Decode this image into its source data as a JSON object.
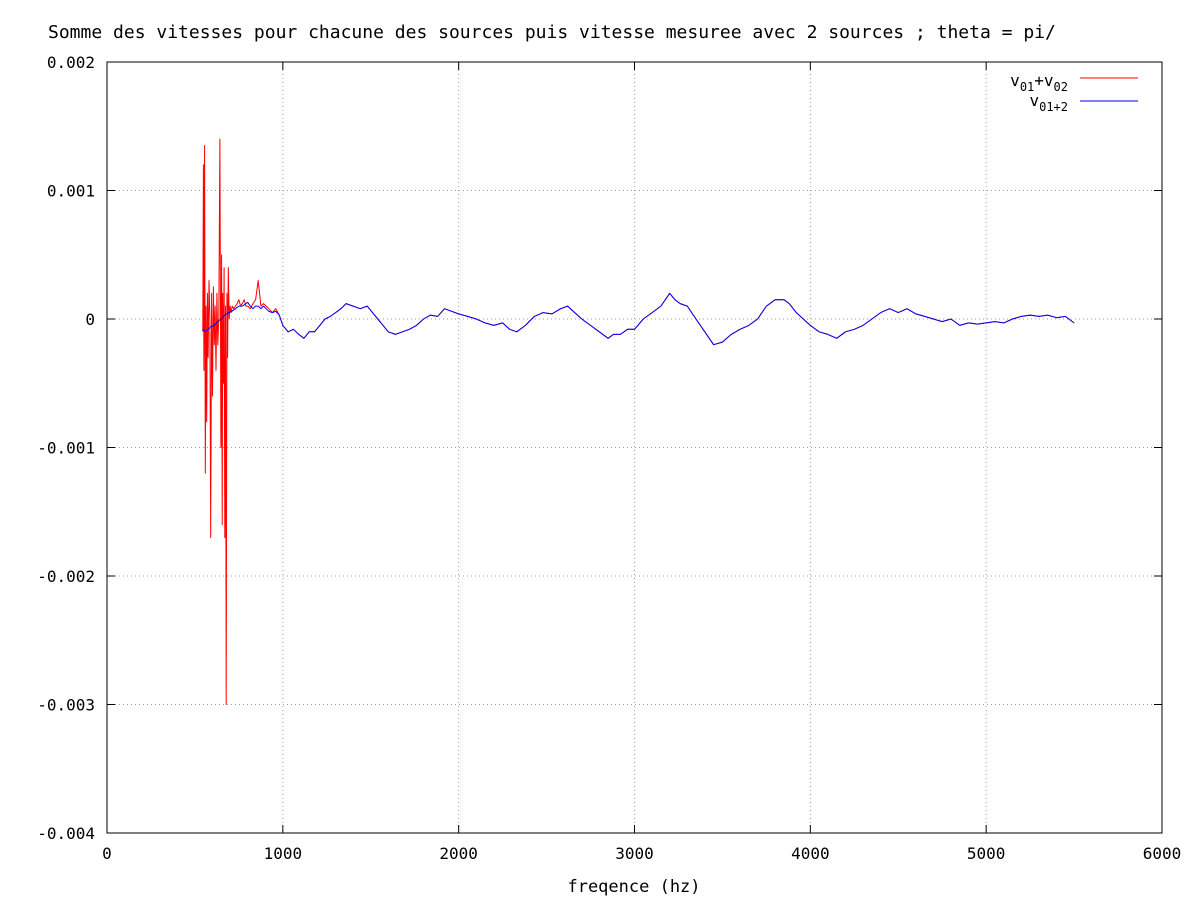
{
  "chart_data": {
    "type": "line",
    "title": "Somme des vitesses pour chacune des sources puis vitesse mesuree avec 2 sources ; theta = pi/",
    "xlabel": "freqence (hz)",
    "ylabel": "",
    "xlim": [
      0,
      6000
    ],
    "ylim": [
      -0.004,
      0.002
    ],
    "x_ticks": [
      0,
      1000,
      2000,
      3000,
      4000,
      5000,
      6000
    ],
    "x_tick_labels": [
      "0",
      "1000",
      "2000",
      "3000",
      "4000",
      "5000",
      "6000"
    ],
    "y_ticks": [
      -0.004,
      -0.003,
      -0.002,
      -0.001,
      0,
      0.001,
      0.002
    ],
    "y_tick_labels": [
      "-0.004",
      "-0.003",
      "-0.002",
      "-0.001",
      "0",
      "0.001",
      "0.002"
    ],
    "grid": true,
    "legend_position": "top-right",
    "legend": [
      {
        "base": "v",
        "sub": "01",
        "plus": "+",
        "base2": "v",
        "sub2": "02"
      },
      {
        "base": "v",
        "sub": "01+2"
      }
    ],
    "series": [
      {
        "color": "#ff0000",
        "x": [
          545,
          548,
          551,
          555,
          559,
          563,
          567,
          571,
          575,
          580,
          585,
          590,
          595,
          600,
          605,
          610,
          615,
          620,
          625,
          630,
          636,
          642,
          648,
          652,
          655,
          658,
          662,
          666,
          670,
          674,
          678,
          682,
          686,
          690,
          695,
          700,
          706,
          712,
          720,
          730,
          740,
          750,
          760,
          770,
          780,
          790,
          800,
          815,
          830,
          845,
          860,
          875,
          890,
          905,
          920,
          940,
          960,
          980,
          1000,
          1030,
          1060,
          1090,
          1120,
          1150,
          1180,
          1210,
          1240,
          1270,
          1300,
          1330,
          1360,
          1400,
          1440,
          1480,
          1510,
          1540,
          1570,
          1600,
          1640,
          1680,
          1720,
          1760,
          1800,
          1840,
          1880,
          1920,
          1960,
          2000,
          2050,
          2100,
          2150,
          2200,
          2250,
          2290,
          2330,
          2380,
          2430,
          2480,
          2530,
          2580,
          2620,
          2660,
          2700,
          2750,
          2800,
          2850,
          2880,
          2920,
          2960,
          3000,
          3050,
          3100,
          3150,
          3200,
          3230,
          3260,
          3300,
          3350,
          3400,
          3450,
          3500,
          3550,
          3600,
          3650,
          3700,
          3750,
          3800,
          3850,
          3880,
          3920,
          3960,
          4000,
          4050,
          4100,
          4150,
          4200,
          4250,
          4300,
          4350,
          4400,
          4450,
          4500,
          4550,
          4600,
          4650,
          4700,
          4750,
          4800,
          4850,
          4900,
          4950,
          5000,
          5050,
          5100,
          5150,
          5200,
          5250,
          5300,
          5350,
          5400,
          5450,
          5500
        ],
        "y": [
          -0.0001,
          0.0012,
          -0.0004,
          0.00135,
          -0.0012,
          0.0001,
          -0.0008,
          0.0002,
          -0.0003,
          0.0003,
          0.0,
          -0.0017,
          0.0002,
          -0.0006,
          0.00025,
          -0.0002,
          0.0001,
          -0.0004,
          0.0002,
          -0.0002,
          0.0,
          0.0014,
          -0.001,
          0.0005,
          -0.0016,
          0.0002,
          -0.0005,
          0.0004,
          -0.0017,
          0.0001,
          -0.003,
          0.0002,
          -0.0003,
          0.0004,
          0.0,
          0.0001,
          5e-05,
          0.0001,
          8e-05,
          0.0001,
          0.00012,
          0.00015,
          0.0001,
          0.00012,
          0.00015,
          0.0001,
          0.0001,
          8e-05,
          0.00012,
          0.00015,
          0.0003,
          0.0001,
          0.00012,
          0.0001,
          8e-05,
          5e-05,
          8e-05,
          3e-05,
          -5e-05,
          -0.0001,
          -8e-05,
          -0.00012,
          -0.00015,
          -0.0001,
          -0.0001,
          -5e-05,
          0.0,
          2e-05,
          5e-05,
          8e-05,
          0.00012,
          0.0001,
          8e-05,
          0.0001,
          5e-05,
          0.0,
          -5e-05,
          -0.0001,
          -0.00012,
          -0.0001,
          -8e-05,
          -5e-05,
          0.0,
          3e-05,
          2e-05,
          8e-05,
          6e-05,
          4e-05,
          2e-05,
          0.0,
          -3e-05,
          -5e-05,
          -3e-05,
          -8e-05,
          -0.0001,
          -5e-05,
          2e-05,
          5e-05,
          4e-05,
          8e-05,
          0.0001,
          5e-05,
          0.0,
          -5e-05,
          -0.0001,
          -0.00015,
          -0.00012,
          -0.00012,
          -8e-05,
          -8e-05,
          0.0,
          5e-05,
          0.0001,
          0.0002,
          0.00015,
          0.00012,
          0.0001,
          0.0,
          -0.0001,
          -0.0002,
          -0.00018,
          -0.00012,
          -8e-05,
          -5e-05,
          0.0,
          0.0001,
          0.00015,
          0.00015,
          0.00012,
          5e-05,
          0.0,
          -5e-05,
          -0.0001,
          -0.00012,
          -0.00015,
          -0.0001,
          -8e-05,
          -5e-05,
          0.0,
          5e-05,
          8e-05,
          5e-05,
          8e-05,
          4e-05,
          2e-05,
          0.0,
          -2e-05,
          0.0,
          -5e-05,
          -3e-05,
          -4e-05,
          -3e-05,
          -2e-05,
          -3e-05,
          0.0,
          2e-05,
          3e-05,
          2e-05,
          3e-05,
          1e-05,
          2e-05,
          -3e-05
        ]
      },
      {
        "color": "#0000ff",
        "x": [
          545,
          560,
          575,
          590,
          610,
          630,
          650,
          670,
          690,
          710,
          730,
          750,
          770,
          790,
          800,
          815,
          830,
          845,
          860,
          875,
          890,
          905,
          920,
          940,
          960,
          980,
          1000,
          1030,
          1060,
          1090,
          1120,
          1150,
          1180,
          1210,
          1240,
          1270,
          1300,
          1330,
          1360,
          1400,
          1440,
          1480,
          1510,
          1540,
          1570,
          1600,
          1640,
          1680,
          1720,
          1760,
          1800,
          1840,
          1880,
          1920,
          1960,
          2000,
          2050,
          2100,
          2150,
          2200,
          2250,
          2290,
          2330,
          2380,
          2430,
          2480,
          2530,
          2580,
          2620,
          2660,
          2700,
          2750,
          2800,
          2850,
          2880,
          2920,
          2960,
          3000,
          3050,
          3100,
          3150,
          3200,
          3230,
          3260,
          3300,
          3350,
          3400,
          3450,
          3500,
          3550,
          3600,
          3650,
          3700,
          3750,
          3800,
          3850,
          3880,
          3920,
          3960,
          4000,
          4050,
          4100,
          4150,
          4200,
          4250,
          4300,
          4350,
          4400,
          4450,
          4500,
          4550,
          4600,
          4650,
          4700,
          4750,
          4800,
          4850,
          4900,
          4950,
          5000,
          5050,
          5100,
          5150,
          5200,
          5250,
          5300,
          5350,
          5400,
          5450,
          5500
        ],
        "y": [
          -8e-05,
          -0.0001,
          -8e-05,
          -6e-05,
          -5e-05,
          -2e-05,
          0.0,
          3e-05,
          5e-05,
          6e-05,
          8e-05,
          0.0001,
          0.0001,
          0.00012,
          0.00013,
          0.0001,
          8e-05,
          0.0001,
          0.0001,
          8e-05,
          0.0001,
          8e-05,
          6e-05,
          5e-05,
          6e-05,
          3e-05,
          -5e-05,
          -0.0001,
          -8e-05,
          -0.00012,
          -0.00015,
          -0.0001,
          -0.0001,
          -5e-05,
          0.0,
          2e-05,
          5e-05,
          8e-05,
          0.00012,
          0.0001,
          8e-05,
          0.0001,
          5e-05,
          0.0,
          -5e-05,
          -0.0001,
          -0.00012,
          -0.0001,
          -8e-05,
          -5e-05,
          0.0,
          3e-05,
          2e-05,
          8e-05,
          6e-05,
          4e-05,
          2e-05,
          0.0,
          -3e-05,
          -5e-05,
          -3e-05,
          -8e-05,
          -0.0001,
          -5e-05,
          2e-05,
          5e-05,
          4e-05,
          8e-05,
          0.0001,
          5e-05,
          0.0,
          -5e-05,
          -0.0001,
          -0.00015,
          -0.00012,
          -0.00012,
          -8e-05,
          -8e-05,
          0.0,
          5e-05,
          0.0001,
          0.0002,
          0.00015,
          0.00012,
          0.0001,
          0.0,
          -0.0001,
          -0.0002,
          -0.00018,
          -0.00012,
          -8e-05,
          -5e-05,
          0.0,
          0.0001,
          0.00015,
          0.00015,
          0.00012,
          5e-05,
          0.0,
          -5e-05,
          -0.0001,
          -0.00012,
          -0.00015,
          -0.0001,
          -8e-05,
          -5e-05,
          0.0,
          5e-05,
          8e-05,
          5e-05,
          8e-05,
          4e-05,
          2e-05,
          0.0,
          -2e-05,
          0.0,
          -5e-05,
          -3e-05,
          -4e-05,
          -3e-05,
          -2e-05,
          -3e-05,
          0.0,
          2e-05,
          3e-05,
          2e-05,
          3e-05,
          1e-05,
          2e-05,
          -3e-05
        ]
      }
    ]
  }
}
